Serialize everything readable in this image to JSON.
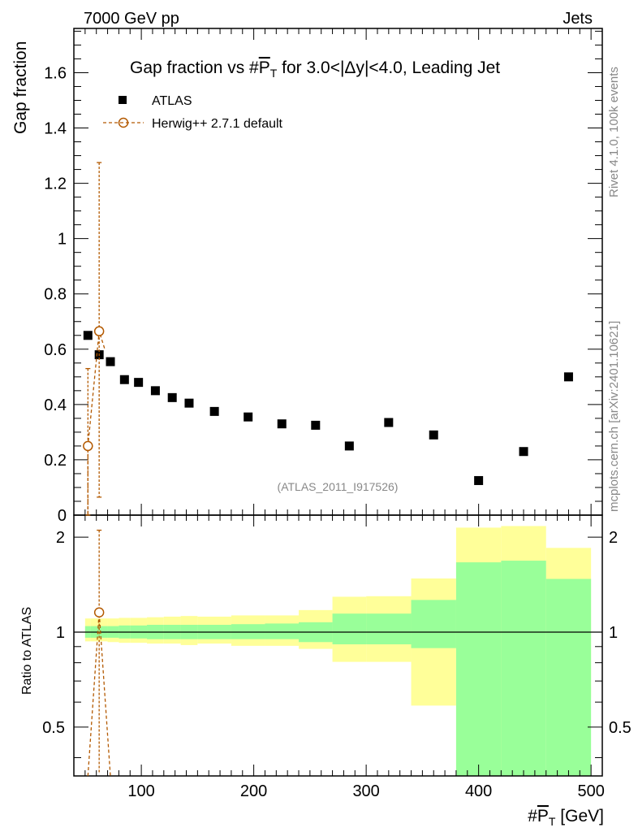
{
  "header": {
    "left_label": "7000 GeV pp",
    "right_label": "Jets"
  },
  "side_labels": {
    "rivet": "Rivet 4.1.0,  100k events",
    "mcplots": "mcplots.cern.ch [arXiv:2401.10621]"
  },
  "chart_data": [
    {
      "type": "scatter",
      "title": "Gap fraction vs #P̅T for 3.0<|Δy|<4.0, Leading Jet",
      "title_parts": {
        "prefix": "Gap fraction vs #",
        "var_main": "P",
        "var_sub": "T",
        "suffix": " for 3.0<|Δy|<4.0, Leading Jet"
      },
      "xlabel": "#P̅T [GeV]",
      "xlabel_parts": {
        "prefix": "#",
        "var_main": "P",
        "var_sub": "T",
        "suffix": " [GeV]"
      },
      "ylabel": "Gap fraction",
      "analysis_id": "(ATLAS_2011_I917526)",
      "xlim": [
        40,
        510
      ],
      "ylim": [
        0,
        1.76
      ],
      "x_ticks": [
        100,
        200,
        300,
        400,
        500
      ],
      "y_ticks": [
        0,
        0.2,
        0.4,
        0.6,
        0.8,
        1,
        1.2,
        1.4,
        1.6
      ],
      "y_tick_labels": [
        "0",
        "0.2",
        "0.4",
        "0.6",
        "0.8",
        "1",
        "1.2",
        "1.4",
        "1.6"
      ],
      "legend": [
        {
          "name": "ATLAS",
          "marker": "filled-square",
          "color": "#000000"
        },
        {
          "name": "Herwig++ 2.7.1 default",
          "marker": "open-circle-dashed",
          "color": "#b35900"
        }
      ],
      "series": [
        {
          "name": "ATLAS",
          "x": [
            52.5,
            62.5,
            72.5,
            85,
            97.5,
            112.5,
            127.5,
            142.5,
            165,
            195,
            225,
            255,
            285,
            320,
            360,
            400,
            440,
            480
          ],
          "y": [
            0.65,
            0.58,
            0.555,
            0.49,
            0.48,
            0.45,
            0.425,
            0.405,
            0.375,
            0.355,
            0.33,
            0.325,
            0.25,
            0.335,
            0.29,
            0.125,
            0.23,
            0.5
          ]
        },
        {
          "name": "Herwig++ 2.7.1 default",
          "x": [
            52.5,
            62.5
          ],
          "y": [
            0.25,
            0.665
          ],
          "y_err_low": [
            0.25,
            0.6
          ],
          "y_err_high": [
            0.28,
            0.61
          ]
        }
      ]
    },
    {
      "type": "area",
      "ylabel": "Ratio to ATLAS",
      "xlim": [
        40,
        510
      ],
      "ylim": [
        0.35,
        2.35
      ],
      "y_ticks": [
        0.5,
        1,
        2
      ],
      "y_tick_labels": [
        "0.5",
        "1",
        "2"
      ],
      "reference_line": 1,
      "band_edges": [
        50,
        55,
        70,
        80,
        90,
        105,
        120,
        135,
        150,
        180,
        210,
        240,
        270,
        300,
        340,
        380,
        420,
        460,
        500
      ],
      "bands": {
        "green_inner": {
          "low": [
            0.96,
            0.96,
            0.96,
            0.955,
            0.955,
            0.95,
            0.95,
            0.95,
            0.95,
            0.95,
            0.95,
            0.93,
            0.915,
            0.915,
            0.89,
            0.01,
            0.01,
            0.01
          ],
          "high": [
            1.045,
            1.045,
            1.045,
            1.05,
            1.05,
            1.055,
            1.055,
            1.055,
            1.055,
            1.06,
            1.065,
            1.075,
            1.145,
            1.145,
            1.265,
            1.665,
            1.685,
            1.475
          ]
        },
        "yellow_outer": {
          "low": [
            0.935,
            0.935,
            0.93,
            0.925,
            0.925,
            0.92,
            0.92,
            0.91,
            0.92,
            0.905,
            0.905,
            0.885,
            0.805,
            0.805,
            0.585,
            0.01,
            0.01,
            0.62
          ],
          "high": [
            1.105,
            1.105,
            1.105,
            1.11,
            1.11,
            1.115,
            1.12,
            1.125,
            1.12,
            1.13,
            1.13,
            1.175,
            1.295,
            1.3,
            1.48,
            2.145,
            2.17,
            1.85
          ]
        }
      },
      "series": [
        {
          "name": "Herwig++ 2.7.1 default",
          "x": [
            52.5,
            62.5,
            72.5
          ],
          "y": [
            0.3,
            1.155,
            0.3
          ],
          "y_err_low": [
            0.0,
            0.8,
            0.0
          ],
          "y_err_high": [
            0.0,
            0.95,
            0.0
          ]
        }
      ]
    }
  ]
}
